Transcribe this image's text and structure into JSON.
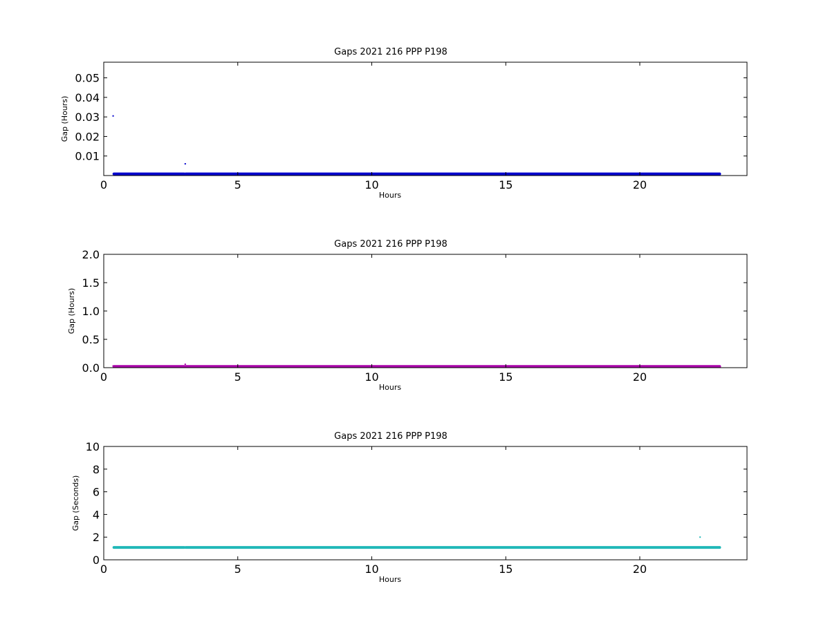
{
  "chart_data": [
    {
      "type": "scatter",
      "title": "Gaps 2021 216 PPP  P198",
      "xlabel": "Hours",
      "ylabel": "Gap (Hours)",
      "xlim": [
        0,
        24
      ],
      "ylim": [
        0,
        0.058
      ],
      "xticks": [
        0,
        5,
        10,
        15,
        20
      ],
      "xtick_labels": [
        "0",
        "5",
        "10",
        "15",
        "20"
      ],
      "yticks": [
        0.01,
        0.02,
        0.03,
        0.04,
        0.05
      ],
      "ytick_labels": [
        "0.01",
        "0.02",
        "0.03",
        "0.04",
        "0.05"
      ],
      "color": "#0000cc",
      "series": [
        {
          "bands": [
            {
              "x_start": 0.38,
              "x_end": 3.0,
              "y": 0.0003
            },
            {
              "x_start": 3.06,
              "x_end": 22.98,
              "y": 0.0003
            }
          ],
          "points": [
            {
              "x": 0.35,
              "y": 0.0305
            },
            {
              "x": 3.04,
              "y": 0.006
            }
          ]
        }
      ]
    },
    {
      "type": "scatter",
      "title": "Gaps 2021 216 PPP  P198",
      "xlabel": "Hours",
      "ylabel": "Gap (Hours)",
      "xlim": [
        0,
        24
      ],
      "ylim": [
        0,
        2.0
      ],
      "xticks": [
        0,
        5,
        10,
        15,
        20
      ],
      "xtick_labels": [
        "0",
        "5",
        "10",
        "15",
        "20"
      ],
      "yticks": [
        0.0,
        0.5,
        1.0,
        1.5,
        2.0
      ],
      "ytick_labels": [
        "0.0",
        "0.5",
        "1.0",
        "1.5",
        "2.0"
      ],
      "color": "#aa00aa",
      "series": [
        {
          "bands": [
            {
              "x_start": 0.38,
              "x_end": 3.0,
              "y": 0.003
            },
            {
              "x_start": 3.06,
              "x_end": 22.98,
              "y": 0.003
            }
          ],
          "points": [
            {
              "x": 0.35,
              "y": 0.03
            },
            {
              "x": 3.04,
              "y": 0.06
            }
          ]
        }
      ]
    },
    {
      "type": "scatter",
      "title": "Gaps 2021 216 PPP  P198",
      "xlabel": "Hours",
      "ylabel": "Gap (Seconds)",
      "xlim": [
        0,
        24
      ],
      "ylim": [
        0,
        10
      ],
      "xticks": [
        0,
        5,
        10,
        15,
        20
      ],
      "xtick_labels": [
        "0",
        "5",
        "10",
        "15",
        "20"
      ],
      "yticks": [
        0,
        2,
        4,
        6,
        8,
        10
      ],
      "ytick_labels": [
        "0",
        "2",
        "4",
        "6",
        "8",
        "10"
      ],
      "color": "#20b8b8",
      "series": [
        {
          "bands": [
            {
              "x_start": 0.38,
              "x_end": 3.0,
              "y": 1.0
            },
            {
              "x_start": 3.06,
              "x_end": 22.98,
              "y": 1.0
            }
          ],
          "points": [
            {
              "x": 22.25,
              "y": 2.0
            }
          ]
        }
      ]
    }
  ]
}
